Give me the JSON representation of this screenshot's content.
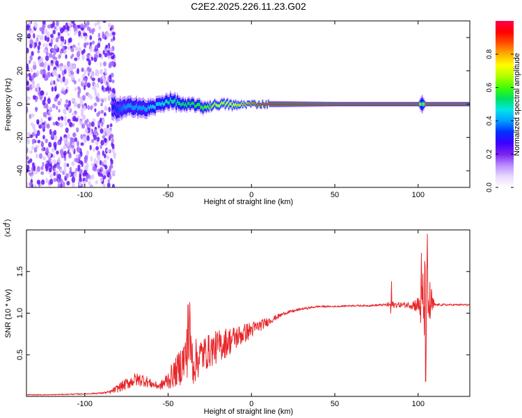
{
  "figure_title": "C2E2.2025.226.11.23.G02",
  "chart_data": [
    {
      "type": "heatmap",
      "title": "",
      "xlabel": "Height of straight line (km)",
      "ylabel": "Frequency (Hz)",
      "xlim": [
        -135,
        131
      ],
      "ylim": [
        -50,
        50
      ],
      "xticks": [
        -100,
        -50,
        0,
        50,
        100
      ],
      "yticks": [
        -40,
        -20,
        0,
        20,
        40
      ],
      "colorbar": {
        "label": "Normalized spectral amplitude",
        "range": [
          0,
          1
        ],
        "ticks": [
          0.0,
          0.2,
          0.4,
          0.6,
          0.8
        ],
        "colormap": [
          "#ffffff",
          "#e8d8ff",
          "#b98cff",
          "#7a22f0",
          "#3b00ff",
          "#0030ff",
          "#00a0ff",
          "#00e6e6",
          "#00e060",
          "#40ff00",
          "#b0ff00",
          "#ffff00",
          "#ffb000",
          "#ff5000",
          "#ff0000",
          "#ff0050"
        ]
      },
      "noise_region": {
        "x_range": [
          -135,
          -82
        ],
        "amplitude": 0.12
      },
      "signal_track": {
        "x": [
          -84,
          -80,
          -75,
          -70,
          -65,
          -60,
          -55,
          -50,
          -45,
          -40,
          -35,
          -30,
          -25,
          -20,
          -15,
          -10,
          -5,
          0,
          5,
          10,
          50,
          100,
          102,
          104,
          131
        ],
        "frequency": [
          -2,
          -3,
          -2,
          -1,
          -3,
          -2,
          0,
          2,
          1,
          -1,
          0,
          -2,
          -1,
          0,
          0,
          -1,
          0,
          0,
          0,
          0,
          0,
          0,
          0,
          0,
          0
        ],
        "amplitude": [
          0.3,
          0.35,
          0.4,
          0.4,
          0.4,
          0.45,
          0.45,
          0.5,
          0.5,
          0.55,
          0.55,
          0.6,
          0.65,
          0.7,
          0.7,
          0.75,
          0.8,
          0.85,
          0.9,
          0.95,
          0.95,
          0.95,
          0.4,
          0.95,
          0.95
        ],
        "spread": [
          8,
          7,
          6,
          6,
          6,
          5,
          5,
          5,
          5,
          4,
          4,
          4,
          3,
          3,
          3,
          3,
          2,
          2,
          2,
          2,
          1.5,
          1.5,
          6,
          1.5,
          1.5
        ]
      },
      "colors": {
        "axis": "#000000"
      }
    },
    {
      "type": "line",
      "title": "",
      "xlabel": "Height of straight line (km)",
      "ylabel": "SNR (10 * v/v)",
      "y_multiplier_label": "(x10",
      "y_multiplier_exp": "4",
      "xlim": [
        -135,
        131
      ],
      "ylim": [
        0,
        2.0
      ],
      "xticks": [
        -100,
        -50,
        0,
        50,
        100
      ],
      "yticks": [
        0.5,
        1.0,
        1.5
      ],
      "series": [
        {
          "color": "#e8262a",
          "x": [
            -135,
            -120,
            -100,
            -90,
            -85,
            -80,
            -75,
            -70,
            -65,
            -60,
            -55,
            -50,
            -45,
            -40,
            -37,
            -35,
            -30,
            -25,
            -20,
            -15,
            -10,
            -5,
            0,
            5,
            10,
            15,
            20,
            30,
            40,
            50,
            60,
            70,
            80,
            84,
            90,
            95,
            100,
            103,
            105,
            106,
            110,
            120,
            131
          ],
          "y": [
            0.02,
            0.02,
            0.03,
            0.04,
            0.05,
            0.1,
            0.15,
            0.2,
            0.2,
            0.15,
            0.12,
            0.2,
            0.3,
            0.45,
            0.65,
            0.4,
            0.5,
            0.55,
            0.6,
            0.65,
            0.7,
            0.75,
            0.8,
            0.85,
            0.9,
            0.95,
            1.0,
            1.05,
            1.08,
            1.08,
            1.09,
            1.09,
            1.1,
            1.1,
            1.1,
            1.1,
            1.1,
            1.1,
            1.1,
            1.1,
            1.1,
            1.1,
            1.1
          ],
          "noise": [
            0.005,
            0.005,
            0.008,
            0.01,
            0.02,
            0.05,
            0.07,
            0.08,
            0.08,
            0.05,
            0.04,
            0.12,
            0.18,
            0.3,
            0.35,
            0.28,
            0.22,
            0.2,
            0.2,
            0.18,
            0.15,
            0.12,
            0.1,
            0.07,
            0.05,
            0.03,
            0.02,
            0.015,
            0.012,
            0.01,
            0.01,
            0.01,
            0.015,
            0.04,
            0.03,
            0.04,
            0.1,
            0.5,
            0.6,
            0.4,
            0.015,
            0.012,
            0.012
          ]
        }
      ],
      "spikes": [
        {
          "x": 84,
          "y": 1.38
        },
        {
          "x": 83.5,
          "y": 1.0
        },
        {
          "x": 102,
          "y": 1.72
        },
        {
          "x": 104.5,
          "y": 0.18
        },
        {
          "x": 105.5,
          "y": 1.95
        },
        {
          "x": -37,
          "y": 1.13
        },
        {
          "x": -38,
          "y": 1.1
        }
      ]
    }
  ]
}
